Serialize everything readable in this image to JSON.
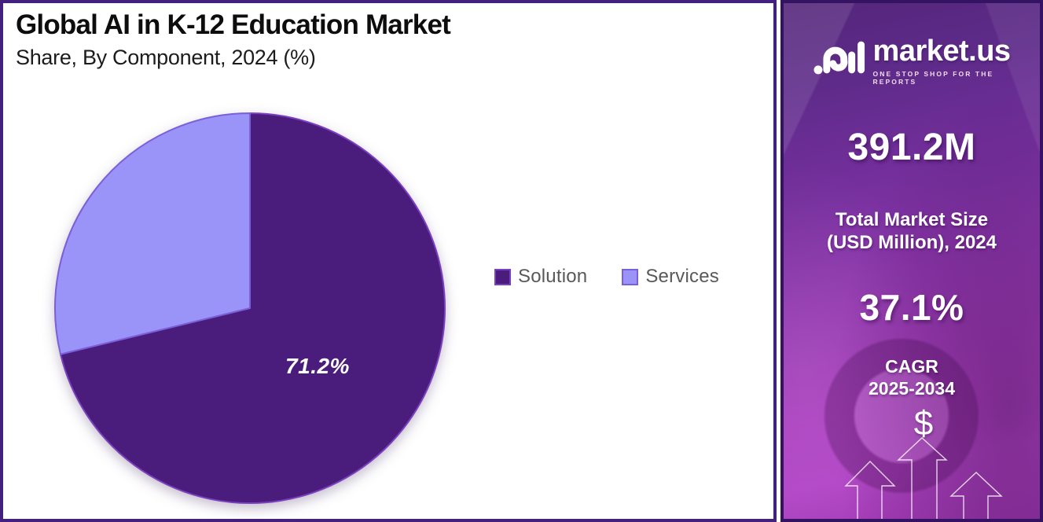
{
  "header": {
    "title": "Global AI in K-12 Education Market",
    "subtitle": "Share, By Component, 2024 (%)"
  },
  "chart_data": {
    "type": "pie",
    "title": "Global AI in K-12 Education Market Share, By Component, 2024 (%)",
    "categories": [
      "Solution",
      "Services"
    ],
    "values": [
      71.2,
      28.8
    ],
    "slices": [
      {
        "label": "Solution",
        "value": 71.2,
        "color": "#4A1C7B",
        "border": "#7B3FC0",
        "data_label": "71.2%"
      },
      {
        "label": "Services",
        "value": 28.8,
        "color": "#9A93F8",
        "border": "#7A5FD8",
        "data_label": ""
      }
    ],
    "start_angle": "top",
    "direction": "clockwise",
    "legend_position": "right-middle",
    "shown_data_label": "71.2%"
  },
  "sidebar": {
    "brand": {
      "name": "market.us",
      "tagline": "ONE STOP SHOP FOR THE REPORTS"
    },
    "stats": [
      {
        "value": "391.2M",
        "label_lines": [
          "Total Market Size",
          "(USD Million), 2024"
        ]
      },
      {
        "value": "37.1%",
        "label_lines": [
          "CAGR",
          "2025-2034"
        ]
      }
    ],
    "dollar_symbol": "$",
    "colors": {
      "gradient_top": "#54267A",
      "gradient_bottom": "#B245C6",
      "border": "#341363"
    }
  },
  "frame": {
    "main_border_color": "#44217E"
  }
}
